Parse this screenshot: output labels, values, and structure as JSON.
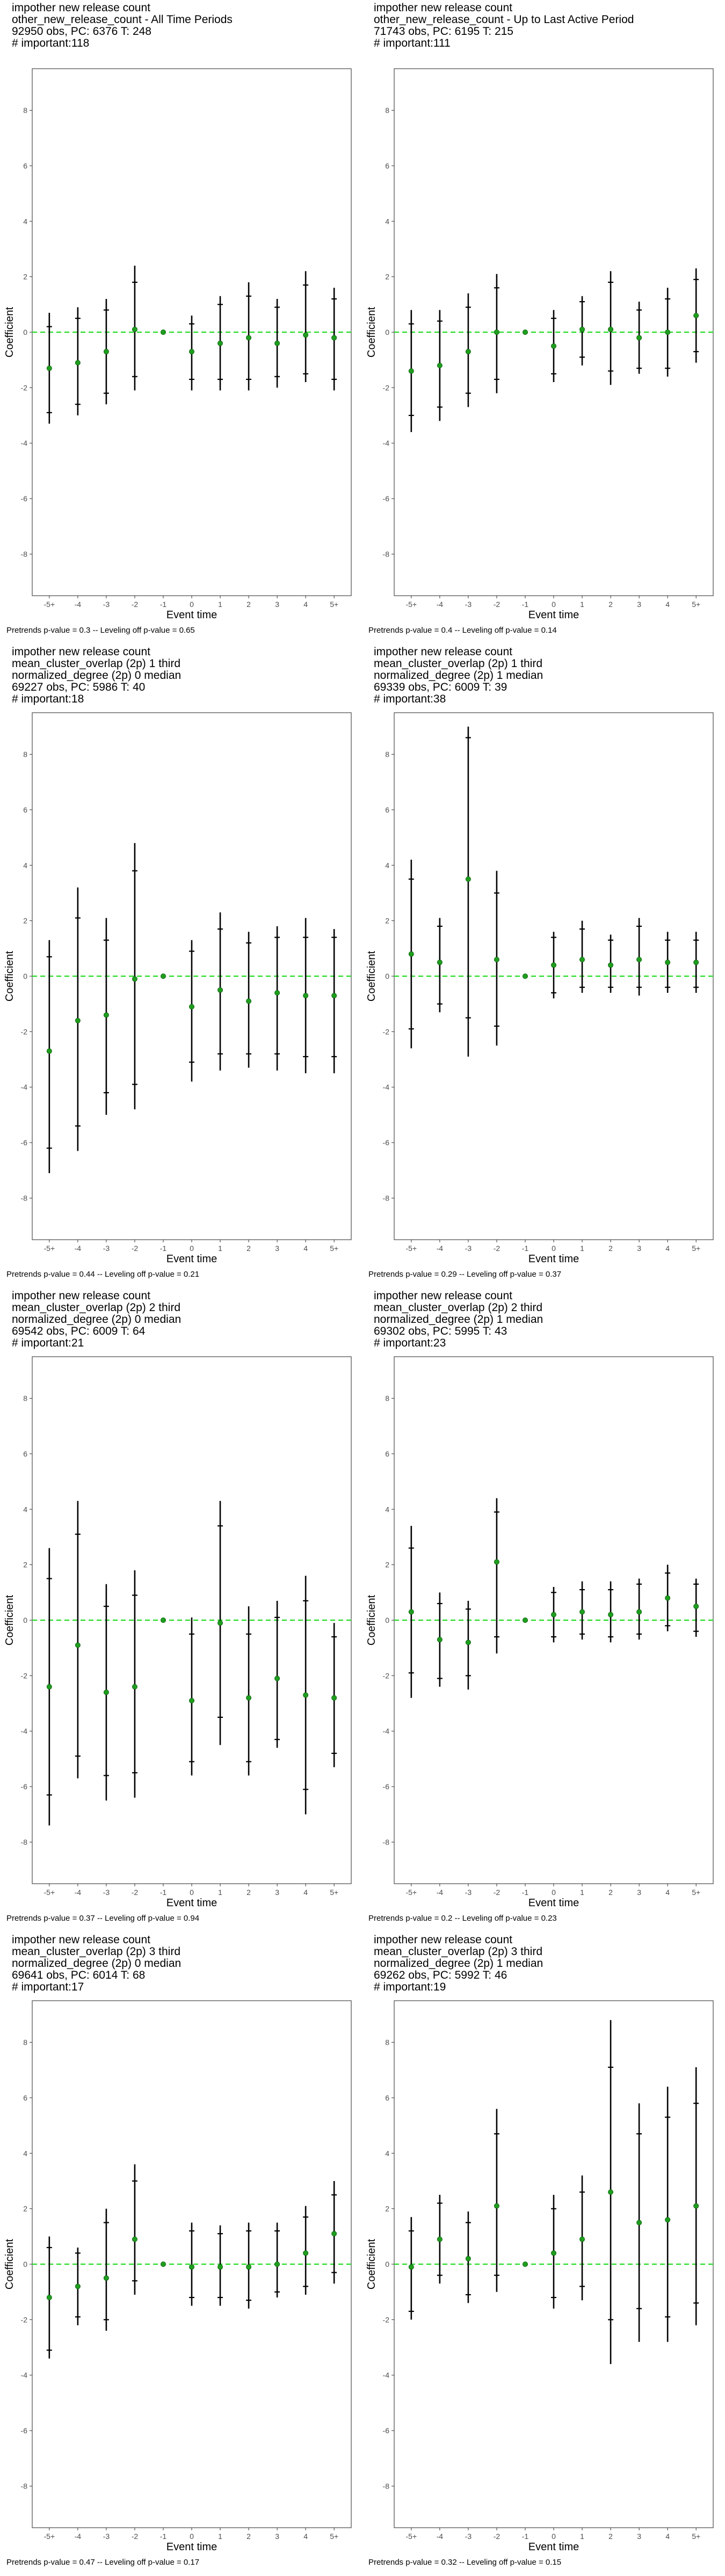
{
  "chart_data": [
    {
      "type": "scatter",
      "title_lines": [
        " impother new release count",
        "other_new_release_count - All Time Periods",
        "92950 obs, PC: 6376 T: 248",
        "# important:118"
      ],
      "xlabel": "Event time",
      "ylabel": "Coefficient",
      "categories": [
        "-5+",
        "-4",
        "-3",
        "-2",
        "-1",
        "0",
        "1",
        "2",
        "3",
        "4",
        "5+"
      ],
      "values": [
        -1.3,
        -1.1,
        -0.7,
        0.1,
        0.0,
        -0.7,
        -0.4,
        -0.2,
        -0.4,
        -0.1,
        -0.2
      ],
      "ci95": [
        [
          -3.3,
          0.7
        ],
        [
          -3.0,
          0.9
        ],
        [
          -2.6,
          1.2
        ],
        [
          -2.1,
          2.4
        ],
        [
          0.0,
          0.0
        ],
        [
          -2.1,
          0.6
        ],
        [
          -2.1,
          1.3
        ],
        [
          -2.1,
          1.8
        ],
        [
          -2.0,
          1.2
        ],
        [
          -1.8,
          2.2
        ],
        [
          -2.1,
          1.6
        ]
      ],
      "ci90": [
        [
          -2.9,
          0.2
        ],
        [
          -2.6,
          0.5
        ],
        [
          -2.2,
          0.8
        ],
        [
          -1.6,
          1.8
        ],
        [
          0.0,
          0.0
        ],
        [
          -1.7,
          0.3
        ],
        [
          -1.7,
          1.0
        ],
        [
          -1.7,
          1.3
        ],
        [
          -1.6,
          0.9
        ],
        [
          -1.5,
          1.7
        ],
        [
          -1.7,
          1.2
        ]
      ],
      "ylim": [
        -9.5,
        9.5
      ],
      "yticks": [
        -8,
        -6,
        -4,
        -2,
        0,
        2,
        4,
        6,
        8
      ],
      "reference_line": 0,
      "footnote": "Pretrends p-value = 0.3 -- Leveling off p-value = 0.65"
    },
    {
      "type": "scatter",
      "title_lines": [
        " impother new release count",
        "other_new_release_count - Up to Last Active Period",
        "71743 obs, PC: 6195 T: 215",
        "# important:111"
      ],
      "xlabel": "Event time",
      "ylabel": "Coefficient",
      "categories": [
        "-5+",
        "-4",
        "-3",
        "-2",
        "-1",
        "0",
        "1",
        "2",
        "3",
        "4",
        "5+"
      ],
      "values": [
        -1.4,
        -1.2,
        -0.7,
        0.0,
        0.0,
        -0.5,
        0.1,
        0.1,
        -0.2,
        0.0,
        0.6
      ],
      "ci95": [
        [
          -3.6,
          0.8
        ],
        [
          -3.2,
          0.8
        ],
        [
          -2.7,
          1.4
        ],
        [
          -2.2,
          2.1
        ],
        [
          0.0,
          0.0
        ],
        [
          -1.8,
          0.8
        ],
        [
          -1.2,
          1.3
        ],
        [
          -1.9,
          2.2
        ],
        [
          -1.5,
          1.1
        ],
        [
          -1.6,
          1.6
        ],
        [
          -1.1,
          2.3
        ]
      ],
      "ci90": [
        [
          -3.0,
          0.3
        ],
        [
          -2.7,
          0.4
        ],
        [
          -2.2,
          0.9
        ],
        [
          -1.7,
          1.6
        ],
        [
          0.0,
          0.0
        ],
        [
          -1.5,
          0.5
        ],
        [
          -0.9,
          1.1
        ],
        [
          -1.4,
          1.8
        ],
        [
          -1.3,
          0.8
        ],
        [
          -1.3,
          1.2
        ],
        [
          -0.7,
          1.9
        ]
      ],
      "ylim": [
        -9.5,
        9.5
      ],
      "yticks": [
        -8,
        -6,
        -4,
        -2,
        0,
        2,
        4,
        6,
        8
      ],
      "reference_line": 0,
      "footnote": "Pretrends p-value = 0.4 -- Leveling off p-value = 0.14"
    },
    {
      "type": "scatter",
      "title_lines": [
        " impother new release count",
        "mean_cluster_overlap (2p) 1 third",
        "normalized_degree (2p) 0 median",
        "69227 obs, PC: 5986 T: 40",
        "# important:18"
      ],
      "xlabel": "Event time",
      "ylabel": "Coefficient",
      "categories": [
        "-5+",
        "-4",
        "-3",
        "-2",
        "-1",
        "0",
        "1",
        "2",
        "3",
        "4",
        "5+"
      ],
      "values": [
        -2.7,
        -1.6,
        -1.4,
        -0.1,
        0.0,
        -1.1,
        -0.5,
        -0.9,
        -0.6,
        -0.7,
        -0.7
      ],
      "ci95": [
        [
          -7.1,
          1.3
        ],
        [
          -6.3,
          3.2
        ],
        [
          -5.0,
          2.1
        ],
        [
          -4.8,
          4.8
        ],
        [
          0.0,
          0.0
        ],
        [
          -3.8,
          1.3
        ],
        [
          -3.4,
          2.3
        ],
        [
          -3.3,
          1.6
        ],
        [
          -3.4,
          1.8
        ],
        [
          -3.5,
          2.1
        ],
        [
          -3.5,
          1.7
        ]
      ],
      "ci90": [
        [
          -6.2,
          0.7
        ],
        [
          -5.4,
          2.1
        ],
        [
          -4.2,
          1.3
        ],
        [
          -3.9,
          3.8
        ],
        [
          0.0,
          0.0
        ],
        [
          -3.1,
          0.9
        ],
        [
          -2.8,
          1.7
        ],
        [
          -2.8,
          1.2
        ],
        [
          -2.8,
          1.4
        ],
        [
          -2.9,
          1.4
        ],
        [
          -2.9,
          1.4
        ]
      ],
      "ylim": [
        -9.5,
        9.5
      ],
      "yticks": [
        -8,
        -6,
        -4,
        -2,
        0,
        2,
        4,
        6,
        8
      ],
      "reference_line": 0,
      "footnote": "Pretrends p-value = 0.44 -- Leveling off p-value = 0.21"
    },
    {
      "type": "scatter",
      "title_lines": [
        " impother new release count",
        "mean_cluster_overlap (2p) 1 third",
        "normalized_degree (2p) 1 median",
        "69339 obs, PC: 6009 T: 39",
        "# important:38"
      ],
      "xlabel": "Event time",
      "ylabel": "Coefficient",
      "categories": [
        "-5+",
        "-4",
        "-3",
        "-2",
        "-1",
        "0",
        "1",
        "2",
        "3",
        "4",
        "5+"
      ],
      "values": [
        0.8,
        0.5,
        3.5,
        0.6,
        0.0,
        0.4,
        0.6,
        0.4,
        0.6,
        0.5,
        0.5
      ],
      "ci95": [
        [
          -2.6,
          4.2
        ],
        [
          -1.3,
          2.1
        ],
        [
          -2.9,
          9.0
        ],
        [
          -2.5,
          3.8
        ],
        [
          0.0,
          0.0
        ],
        [
          -0.8,
          1.6
        ],
        [
          -0.6,
          2.0
        ],
        [
          -0.6,
          1.5
        ],
        [
          -0.7,
          2.1
        ],
        [
          -0.6,
          1.6
        ],
        [
          -0.6,
          1.6
        ]
      ],
      "ci90": [
        [
          -1.9,
          3.5
        ],
        [
          -1.0,
          1.8
        ],
        [
          -1.5,
          8.6
        ],
        [
          -1.8,
          3.0
        ],
        [
          0.0,
          0.0
        ],
        [
          -0.6,
          1.4
        ],
        [
          -0.4,
          1.7
        ],
        [
          -0.4,
          1.3
        ],
        [
          -0.4,
          1.8
        ],
        [
          -0.4,
          1.3
        ],
        [
          -0.4,
          1.3
        ]
      ],
      "ylim": [
        -9.5,
        9.5
      ],
      "yticks": [
        -8,
        -6,
        -4,
        -2,
        0,
        2,
        4,
        6,
        8
      ],
      "reference_line": 0,
      "footnote": "Pretrends p-value = 0.29 -- Leveling off p-value = 0.37"
    },
    {
      "type": "scatter",
      "title_lines": [
        " impother new release count",
        "mean_cluster_overlap (2p) 2 third",
        "normalized_degree (2p) 0 median",
        "69542 obs, PC: 6009 T: 64",
        "# important:21"
      ],
      "xlabel": "Event time",
      "ylabel": "Coefficient",
      "categories": [
        "-5+",
        "-4",
        "-3",
        "-2",
        "-1",
        "0",
        "1",
        "2",
        "3",
        "4",
        "5+"
      ],
      "values": [
        -2.4,
        -0.9,
        -2.6,
        -2.4,
        0.0,
        -2.9,
        -0.1,
        -2.8,
        -2.1,
        -2.7,
        -2.8
      ],
      "ci95": [
        [
          -7.4,
          2.6
        ],
        [
          -5.7,
          4.3
        ],
        [
          -6.5,
          1.3
        ],
        [
          -6.4,
          1.8
        ],
        [
          0.0,
          0.0
        ],
        [
          -5.6,
          0.1
        ],
        [
          -4.5,
          4.3
        ],
        [
          -5.6,
          0.5
        ],
        [
          -4.6,
          0.7
        ],
        [
          -7.0,
          1.6
        ],
        [
          -5.3,
          -0.1
        ]
      ],
      "ci90": [
        [
          -6.3,
          1.5
        ],
        [
          -4.9,
          3.1
        ],
        [
          -5.6,
          0.5
        ],
        [
          -5.5,
          0.9
        ],
        [
          0.0,
          0.0
        ],
        [
          -5.1,
          -0.5
        ],
        [
          -3.5,
          3.4
        ],
        [
          -5.1,
          -0.5
        ],
        [
          -4.3,
          0.1
        ],
        [
          -6.1,
          0.7
        ],
        [
          -4.8,
          -0.6
        ]
      ],
      "ylim": [
        -9.5,
        9.5
      ],
      "yticks": [
        -8,
        -6,
        -4,
        -2,
        0,
        2,
        4,
        6,
        8
      ],
      "reference_line": 0,
      "footnote": "Pretrends p-value = 0.37 -- Leveling off p-value = 0.94"
    },
    {
      "type": "scatter",
      "title_lines": [
        " impother new release count",
        "mean_cluster_overlap (2p) 2 third",
        "normalized_degree (2p) 1 median",
        "69302 obs, PC: 5995 T: 43",
        "# important:23"
      ],
      "xlabel": "Event time",
      "ylabel": "Coefficient",
      "categories": [
        "-5+",
        "-4",
        "-3",
        "-2",
        "-1",
        "0",
        "1",
        "2",
        "3",
        "4",
        "5+"
      ],
      "values": [
        0.3,
        -0.7,
        -0.8,
        2.1,
        0.0,
        0.2,
        0.3,
        0.2,
        0.3,
        0.8,
        0.5
      ],
      "ci95": [
        [
          -2.8,
          3.4
        ],
        [
          -2.4,
          1.0
        ],
        [
          -2.5,
          0.7
        ],
        [
          -1.2,
          4.4
        ],
        [
          0.0,
          0.0
        ],
        [
          -0.8,
          1.2
        ],
        [
          -0.7,
          1.4
        ],
        [
          -0.8,
          1.4
        ],
        [
          -0.7,
          1.5
        ],
        [
          -0.4,
          2.0
        ],
        [
          -0.6,
          1.5
        ]
      ],
      "ci90": [
        [
          -1.9,
          2.6
        ],
        [
          -2.1,
          0.6
        ],
        [
          -2.0,
          0.4
        ],
        [
          -0.6,
          3.9
        ],
        [
          0.0,
          0.0
        ],
        [
          -0.6,
          1.0
        ],
        [
          -0.5,
          1.1
        ],
        [
          -0.6,
          1.1
        ],
        [
          -0.5,
          1.3
        ],
        [
          -0.2,
          1.7
        ],
        [
          -0.4,
          1.3
        ]
      ],
      "ylim": [
        -9.5,
        9.5
      ],
      "yticks": [
        -8,
        -6,
        -4,
        -2,
        0,
        2,
        4,
        6,
        8
      ],
      "reference_line": 0,
      "footnote": "Pretrends p-value = 0.2 -- Leveling off p-value = 0.23"
    },
    {
      "type": "scatter",
      "title_lines": [
        " impother new release count",
        "mean_cluster_overlap (2p) 3 third",
        "normalized_degree (2p) 0 median",
        "69641 obs, PC: 6014 T: 68",
        "# important:17"
      ],
      "xlabel": "Event time",
      "ylabel": "Coefficient",
      "categories": [
        "-5+",
        "-4",
        "-3",
        "-2",
        "-1",
        "0",
        "1",
        "2",
        "3",
        "4",
        "5+"
      ],
      "values": [
        -1.2,
        -0.8,
        -0.5,
        0.9,
        0.0,
        -0.1,
        -0.1,
        -0.1,
        0.0,
        0.4,
        1.1
      ],
      "ci95": [
        [
          -3.4,
          1.0
        ],
        [
          -2.2,
          0.6
        ],
        [
          -2.4,
          2.0
        ],
        [
          -1.1,
          3.6
        ],
        [
          0.0,
          0.0
        ],
        [
          -1.5,
          1.5
        ],
        [
          -1.5,
          1.4
        ],
        [
          -1.6,
          1.5
        ],
        [
          -1.2,
          1.5
        ],
        [
          -1.1,
          2.1
        ],
        [
          -0.7,
          3.0
        ]
      ],
      "ci90": [
        [
          -3.1,
          0.6
        ],
        [
          -1.9,
          0.4
        ],
        [
          -2.0,
          1.5
        ],
        [
          -0.6,
          3.0
        ],
        [
          0.0,
          0.0
        ],
        [
          -1.2,
          1.2
        ],
        [
          -1.2,
          1.1
        ],
        [
          -1.3,
          1.2
        ],
        [
          -1.0,
          1.2
        ],
        [
          -0.8,
          1.7
        ],
        [
          -0.3,
          2.5
        ]
      ],
      "ylim": [
        -9.5,
        9.5
      ],
      "yticks": [
        -8,
        -6,
        -4,
        -2,
        0,
        2,
        4,
        6,
        8
      ],
      "reference_line": 0,
      "footnote": "Pretrends p-value = 0.47 -- Leveling off p-value = 0.17"
    },
    {
      "type": "scatter",
      "title_lines": [
        " impother new release count",
        "mean_cluster_overlap (2p) 3 third",
        "normalized_degree (2p) 1 median",
        "69262 obs, PC: 5992 T: 46",
        "# important:19"
      ],
      "xlabel": "Event time",
      "ylabel": "Coefficient",
      "categories": [
        "-5+",
        "-4",
        "-3",
        "-2",
        "-1",
        "0",
        "1",
        "2",
        "3",
        "4",
        "5+"
      ],
      "values": [
        -0.1,
        0.9,
        0.2,
        2.1,
        0.0,
        0.4,
        0.9,
        2.6,
        1.5,
        1.6,
        2.1
      ],
      "ci95": [
        [
          -2.0,
          1.7
        ],
        [
          -0.7,
          2.5
        ],
        [
          -1.4,
          1.9
        ],
        [
          -1.0,
          5.6
        ],
        [
          0.0,
          0.0
        ],
        [
          -1.6,
          2.5
        ],
        [
          -1.3,
          3.2
        ],
        [
          -3.6,
          8.8
        ],
        [
          -2.8,
          5.8
        ],
        [
          -2.8,
          6.4
        ],
        [
          -2.2,
          7.1
        ]
      ],
      "ci90": [
        [
          -1.7,
          1.2
        ],
        [
          -0.4,
          2.2
        ],
        [
          -1.1,
          1.5
        ],
        [
          -0.4,
          4.7
        ],
        [
          0.0,
          0.0
        ],
        [
          -1.2,
          2.0
        ],
        [
          -0.8,
          2.6
        ],
        [
          -2.0,
          7.1
        ],
        [
          -1.6,
          4.7
        ],
        [
          -1.9,
          5.3
        ],
        [
          -1.4,
          5.8
        ]
      ],
      "ylim": [
        -9.5,
        9.5
      ],
      "yticks": [
        -8,
        -6,
        -4,
        -2,
        0,
        2,
        4,
        6,
        8
      ],
      "reference_line": 0,
      "footnote": "Pretrends p-value = 0.32 -- Leveling off p-value = 0.15"
    }
  ],
  "colors": {
    "point": "#1e9e1e",
    "reference_line": "#33dd33",
    "error_bar": "#000000",
    "panel_border": "#555555",
    "tick_text": "#4d4d4d"
  }
}
